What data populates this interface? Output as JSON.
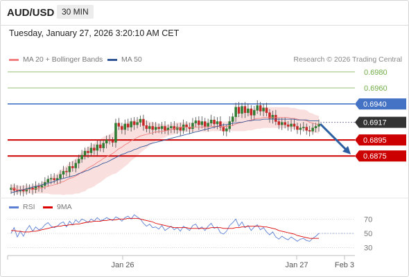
{
  "header": {
    "symbol": "AUD/USD",
    "timeframe": "30 MIN",
    "datetime": "Tuesday, January 27, 2026 3:20:10 AM CET"
  },
  "legend": {
    "items": [
      {
        "label": "MA 20 + Bollinger Bands",
        "color": "#f08080"
      },
      {
        "label": "MA 50",
        "color": "#2f5597"
      }
    ],
    "credit": "Research © 2026 Trading Central"
  },
  "rsi_legend": {
    "items": [
      {
        "label": "RSI",
        "color": "#5b7fd4"
      },
      {
        "label": "9MA",
        "color": "#dd0000"
      }
    ]
  },
  "colors": {
    "resistance_green": "#70ad47",
    "resistance_blue": "#4472c4",
    "support_red": "#cc0000",
    "current_price": "#333333",
    "arrow": "#2e5fa3",
    "candle_up": "#2f7d32",
    "candle_down": "#c62828"
  },
  "chart_data": [
    {
      "type": "candlestick",
      "title": "AUD/USD",
      "ylim": [
        0.6825,
        0.6992
      ],
      "x_ticks": [
        "Jan 26",
        "Jan 27",
        "Feb 3"
      ],
      "grid": false,
      "levels": [
        {
          "value": 0.698,
          "label": "0.6980",
          "style": "green"
        },
        {
          "value": 0.696,
          "label": "0.6960",
          "style": "green"
        },
        {
          "value": 0.694,
          "label": "0.6940",
          "style": "blue"
        },
        {
          "value": 0.6917,
          "label": "0.6917",
          "style": "current"
        },
        {
          "value": 0.6895,
          "label": "0.6895",
          "style": "red"
        },
        {
          "value": 0.6875,
          "label": "0.6875",
          "style": "red"
        }
      ],
      "forecast_arrow": {
        "from": 0.6915,
        "to": 0.6877
      },
      "close": [
        0.6835,
        0.6832,
        0.6831,
        0.6833,
        0.6831,
        0.6834,
        0.6835,
        0.6833,
        0.6837,
        0.6836,
        0.6838,
        0.6842,
        0.6846,
        0.6847,
        0.6845,
        0.6847,
        0.6852,
        0.6856,
        0.6855,
        0.6862,
        0.686,
        0.6866,
        0.6871,
        0.6876,
        0.6881,
        0.6879,
        0.6885,
        0.6882,
        0.6889,
        0.6885,
        0.6891,
        0.6895,
        0.6894,
        0.6892,
        0.6916,
        0.6912,
        0.6908,
        0.6915,
        0.6911,
        0.6918,
        0.6914,
        0.6917,
        0.6921,
        0.6913,
        0.6909,
        0.6912,
        0.6908,
        0.6911,
        0.6909,
        0.6912,
        0.6907,
        0.691,
        0.6912,
        0.6908,
        0.6911,
        0.6907,
        0.6914,
        0.6911,
        0.6909,
        0.6916,
        0.6919,
        0.6914,
        0.6918,
        0.6912,
        0.6916,
        0.692,
        0.6915,
        0.6918,
        0.6911,
        0.6906,
        0.6909,
        0.6918,
        0.6924,
        0.6936,
        0.6928,
        0.6937,
        0.6929,
        0.6934,
        0.6926,
        0.6932,
        0.6938,
        0.6931,
        0.6935,
        0.6929,
        0.6922,
        0.6926,
        0.6918,
        0.6914,
        0.6917,
        0.6914,
        0.6912,
        0.6915,
        0.6912,
        0.6908,
        0.691,
        0.6911,
        0.6907,
        0.6906,
        0.691,
        0.6912,
        0.6915
      ],
      "ma20": [
        0.6834,
        0.6834,
        0.6833,
        0.6833,
        0.6833,
        0.6833,
        0.6833,
        0.6833,
        0.6834,
        0.6834,
        0.6835,
        0.6836,
        0.6837,
        0.6838,
        0.6839,
        0.684,
        0.6842,
        0.6843,
        0.6845,
        0.6847,
        0.6848,
        0.685,
        0.6852,
        0.6855,
        0.6857,
        0.686,
        0.6862,
        0.6864,
        0.6867,
        0.6869,
        0.6872,
        0.6874,
        0.6876,
        0.6878,
        0.6881,
        0.6884,
        0.6886,
        0.6889,
        0.6891,
        0.6894,
        0.6896,
        0.6898,
        0.69,
        0.6901,
        0.6902,
        0.6903,
        0.6904,
        0.6905,
        0.6905,
        0.6906,
        0.6906,
        0.6907,
        0.6908,
        0.6909,
        0.691,
        0.6911,
        0.6911,
        0.6911,
        0.6911,
        0.6911,
        0.6911,
        0.6911,
        0.6911,
        0.6911,
        0.6911,
        0.6912,
        0.6912,
        0.6912,
        0.6912,
        0.6912,
        0.6912,
        0.6913,
        0.6913,
        0.6915,
        0.6916,
        0.6917,
        0.6918,
        0.6919,
        0.692,
        0.6921,
        0.6922,
        0.6922,
        0.6923,
        0.6923,
        0.6923,
        0.6923,
        0.6923,
        0.6923,
        0.6923,
        0.6923,
        0.6923,
        0.6922,
        0.6922,
        0.6921,
        0.692,
        0.692,
        0.6919,
        0.6917,
        0.6916,
        0.6915,
        0.6914
      ],
      "bb_width": [
        0.0005,
        0.0005,
        0.0005,
        0.0005,
        0.0005,
        0.0005,
        0.0005,
        0.0005,
        0.0006,
        0.0006,
        0.0007,
        0.0008,
        0.0009,
        0.0011,
        0.0012,
        0.0013,
        0.0015,
        0.0017,
        0.0018,
        0.002,
        0.0021,
        0.0022,
        0.0024,
        0.0025,
        0.0026,
        0.0026,
        0.0027,
        0.0027,
        0.0027,
        0.0027,
        0.0027,
        0.0026,
        0.0026,
        0.0026,
        0.0028,
        0.0028,
        0.0027,
        0.0027,
        0.0026,
        0.0025,
        0.0024,
        0.0023,
        0.0021,
        0.0019,
        0.0017,
        0.0015,
        0.0013,
        0.0011,
        0.001,
        0.0009,
        0.0008,
        0.0007,
        0.0007,
        0.0007,
        0.0007,
        0.0006,
        0.0006,
        0.0006,
        0.0006,
        0.0006,
        0.0006,
        0.0006,
        0.0006,
        0.0006,
        0.0006,
        0.0006,
        0.0006,
        0.0006,
        0.0006,
        0.0006,
        0.0006,
        0.0006,
        0.0007,
        0.0009,
        0.001,
        0.0011,
        0.0012,
        0.0012,
        0.0013,
        0.0013,
        0.0013,
        0.0013,
        0.0013,
        0.0013,
        0.0013,
        0.0013,
        0.0013,
        0.0013,
        0.0013,
        0.0013,
        0.0013,
        0.0013,
        0.0013,
        0.0013,
        0.0013,
        0.0013,
        0.0013,
        0.0012,
        0.0012,
        0.0011,
        0.0011
      ],
      "ma50": [
        0.6829,
        0.683,
        0.6831,
        0.6832,
        0.6833,
        0.6834,
        0.6835,
        0.6836,
        0.6837,
        0.6838,
        0.6839,
        0.684,
        0.6841,
        0.6842,
        0.6843,
        0.6845,
        0.6846,
        0.6847,
        0.6848,
        0.6849,
        0.685,
        0.6851,
        0.6853,
        0.6854,
        0.6856,
        0.6857,
        0.6859,
        0.6861,
        0.6862,
        0.6864,
        0.6866,
        0.6867,
        0.6869,
        0.6871,
        0.6873,
        0.6875,
        0.6877,
        0.6878,
        0.688,
        0.6881,
        0.6883,
        0.6884,
        0.6886,
        0.6887,
        0.6888,
        0.689,
        0.6891,
        0.6892,
        0.6893,
        0.6894,
        0.6895,
        0.6896,
        0.6897,
        0.6898,
        0.6899,
        0.69,
        0.6901,
        0.6902,
        0.6903,
        0.6904,
        0.6905,
        0.6906,
        0.6907,
        0.6908,
        0.6909,
        0.691,
        0.6911,
        0.6912,
        0.6913,
        0.6914,
        0.6914,
        0.6915,
        0.6916,
        0.6916,
        0.6917,
        0.6917,
        0.6918,
        0.6919,
        0.6919,
        0.692,
        0.692,
        0.692,
        0.6921,
        0.6921,
        0.6921,
        0.6921,
        0.6921,
        0.6921,
        0.6921,
        0.6921,
        0.6921,
        0.6921,
        0.6921,
        0.692,
        0.692,
        0.692,
        0.692,
        0.6919,
        0.6919,
        0.6919,
        0.6919
      ]
    },
    {
      "type": "line",
      "title": "RSI",
      "ylim": [
        20,
        80
      ],
      "y_ticks": [
        70,
        50,
        30
      ],
      "series": [
        {
          "name": "RSI",
          "color": "#5b7fd4",
          "values": [
            50,
            58,
            45,
            53,
            46,
            55,
            61,
            53,
            59,
            55,
            57,
            62,
            65,
            60,
            58,
            60,
            64,
            66,
            59,
            67,
            62,
            69,
            65,
            70,
            68,
            65,
            70,
            67,
            72,
            68,
            69,
            72,
            70,
            68,
            73,
            71,
            67,
            72,
            74,
            70,
            76,
            73,
            70,
            64,
            60,
            63,
            58,
            59,
            56,
            61,
            54,
            57,
            60,
            55,
            58,
            53,
            60,
            57,
            54,
            61,
            63,
            56,
            59,
            54,
            60,
            64,
            57,
            59,
            51,
            49,
            53,
            61,
            65,
            70,
            60,
            66,
            58,
            61,
            54,
            59,
            62,
            55,
            58,
            52,
            48,
            52,
            45,
            42,
            46,
            43,
            41,
            45,
            42,
            39,
            42,
            43,
            40,
            39,
            43,
            46,
            50
          ]
        },
        {
          "name": "9MA",
          "color": "#dd0000",
          "values": [
            54,
            54,
            53,
            53,
            52,
            52,
            52,
            53,
            53,
            54,
            55,
            56,
            57,
            58,
            59,
            60,
            60,
            61,
            61,
            62,
            62,
            63,
            63,
            64,
            65,
            66,
            66,
            67,
            67,
            67,
            68,
            68,
            69,
            69,
            69,
            70,
            70,
            70,
            71,
            71,
            71,
            71,
            70,
            69,
            68,
            67,
            66,
            64,
            63,
            62,
            61,
            60,
            59,
            58,
            58,
            58,
            58,
            58,
            57,
            57,
            57,
            57,
            57,
            57,
            57,
            58,
            58,
            58,
            58,
            57,
            57,
            57,
            57,
            58,
            58,
            59,
            59,
            60,
            60,
            60,
            60,
            60,
            59,
            59,
            58,
            57,
            56,
            54,
            53,
            52,
            51,
            50,
            49,
            47,
            46,
            45,
            44,
            43,
            43,
            43,
            43
          ]
        }
      ],
      "forecast_value": 50
    }
  ]
}
